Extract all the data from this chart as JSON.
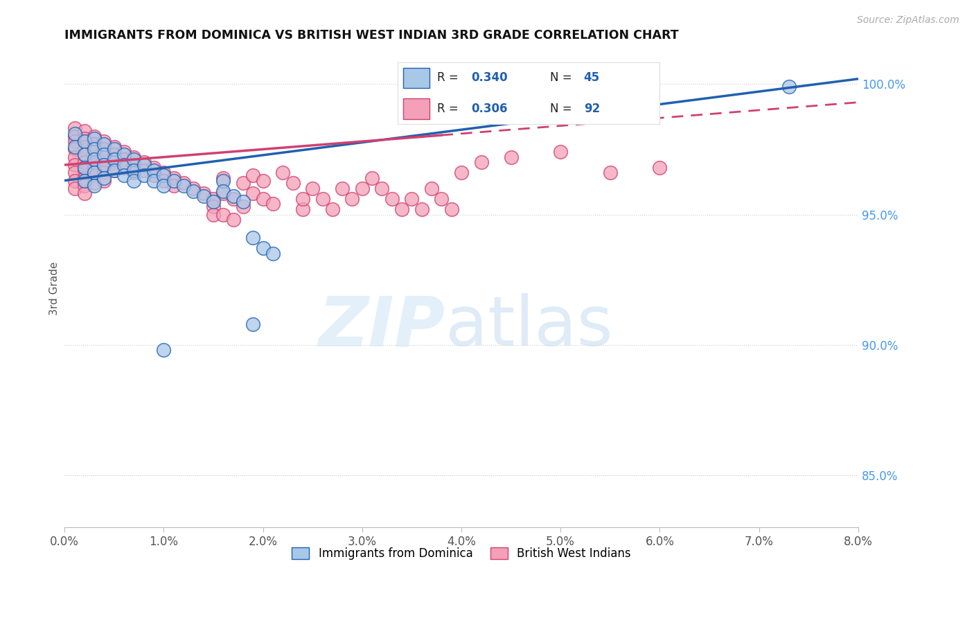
{
  "title": "IMMIGRANTS FROM DOMINICA VS BRITISH WEST INDIAN 3RD GRADE CORRELATION CHART",
  "source": "Source: ZipAtlas.com",
  "ylabel": "3rd Grade",
  "ylabel_right_ticks": [
    "85.0%",
    "90.0%",
    "95.0%",
    "100.0%"
  ],
  "ylabel_right_vals": [
    0.85,
    0.9,
    0.95,
    1.0
  ],
  "legend_blue_r": "0.340",
  "legend_blue_n": "45",
  "legend_pink_r": "0.306",
  "legend_pink_n": "92",
  "blue_color": "#a8c8e8",
  "pink_color": "#f4a0b8",
  "blue_line_color": "#2060b0",
  "pink_line_color": "#d04070",
  "blue_scatter": [
    [
      0.001,
      0.981
    ],
    [
      0.001,
      0.976
    ],
    [
      0.002,
      0.978
    ],
    [
      0.002,
      0.973
    ],
    [
      0.002,
      0.968
    ],
    [
      0.002,
      0.963
    ],
    [
      0.003,
      0.979
    ],
    [
      0.003,
      0.975
    ],
    [
      0.003,
      0.971
    ],
    [
      0.003,
      0.966
    ],
    [
      0.003,
      0.961
    ],
    [
      0.004,
      0.977
    ],
    [
      0.004,
      0.973
    ],
    [
      0.004,
      0.969
    ],
    [
      0.004,
      0.964
    ],
    [
      0.005,
      0.975
    ],
    [
      0.005,
      0.971
    ],
    [
      0.005,
      0.967
    ],
    [
      0.006,
      0.973
    ],
    [
      0.006,
      0.969
    ],
    [
      0.006,
      0.965
    ],
    [
      0.007,
      0.971
    ],
    [
      0.007,
      0.967
    ],
    [
      0.007,
      0.963
    ],
    [
      0.008,
      0.969
    ],
    [
      0.008,
      0.965
    ],
    [
      0.009,
      0.967
    ],
    [
      0.009,
      0.963
    ],
    [
      0.01,
      0.965
    ],
    [
      0.01,
      0.961
    ],
    [
      0.011,
      0.963
    ],
    [
      0.012,
      0.961
    ],
    [
      0.013,
      0.959
    ],
    [
      0.014,
      0.957
    ],
    [
      0.015,
      0.955
    ],
    [
      0.016,
      0.963
    ],
    [
      0.016,
      0.959
    ],
    [
      0.017,
      0.957
    ],
    [
      0.018,
      0.955
    ],
    [
      0.019,
      0.941
    ],
    [
      0.02,
      0.937
    ],
    [
      0.021,
      0.935
    ],
    [
      0.01,
      0.898
    ],
    [
      0.073,
      0.999
    ],
    [
      0.019,
      0.908
    ]
  ],
  "pink_scatter": [
    [
      0.001,
      0.983
    ],
    [
      0.001,
      0.98
    ],
    [
      0.001,
      0.978
    ],
    [
      0.001,
      0.975
    ],
    [
      0.001,
      0.972
    ],
    [
      0.001,
      0.969
    ],
    [
      0.001,
      0.966
    ],
    [
      0.001,
      0.963
    ],
    [
      0.001,
      0.96
    ],
    [
      0.002,
      0.982
    ],
    [
      0.002,
      0.979
    ],
    [
      0.002,
      0.976
    ],
    [
      0.002,
      0.973
    ],
    [
      0.002,
      0.97
    ],
    [
      0.002,
      0.967
    ],
    [
      0.002,
      0.964
    ],
    [
      0.002,
      0.961
    ],
    [
      0.002,
      0.958
    ],
    [
      0.003,
      0.98
    ],
    [
      0.003,
      0.977
    ],
    [
      0.003,
      0.974
    ],
    [
      0.003,
      0.971
    ],
    [
      0.003,
      0.968
    ],
    [
      0.003,
      0.965
    ],
    [
      0.003,
      0.962
    ],
    [
      0.004,
      0.978
    ],
    [
      0.004,
      0.975
    ],
    [
      0.004,
      0.972
    ],
    [
      0.004,
      0.969
    ],
    [
      0.004,
      0.966
    ],
    [
      0.004,
      0.963
    ],
    [
      0.005,
      0.976
    ],
    [
      0.005,
      0.973
    ],
    [
      0.005,
      0.97
    ],
    [
      0.005,
      0.967
    ],
    [
      0.006,
      0.974
    ],
    [
      0.006,
      0.971
    ],
    [
      0.006,
      0.968
    ],
    [
      0.007,
      0.972
    ],
    [
      0.007,
      0.969
    ],
    [
      0.007,
      0.966
    ],
    [
      0.008,
      0.97
    ],
    [
      0.008,
      0.967
    ],
    [
      0.009,
      0.968
    ],
    [
      0.009,
      0.965
    ],
    [
      0.01,
      0.966
    ],
    [
      0.01,
      0.963
    ],
    [
      0.011,
      0.964
    ],
    [
      0.011,
      0.961
    ],
    [
      0.012,
      0.962
    ],
    [
      0.013,
      0.96
    ],
    [
      0.014,
      0.958
    ],
    [
      0.015,
      0.956
    ],
    [
      0.015,
      0.953
    ],
    [
      0.016,
      0.964
    ],
    [
      0.016,
      0.958
    ],
    [
      0.017,
      0.956
    ],
    [
      0.018,
      0.962
    ],
    [
      0.019,
      0.958
    ],
    [
      0.02,
      0.956
    ],
    [
      0.021,
      0.954
    ],
    [
      0.022,
      0.966
    ],
    [
      0.023,
      0.962
    ],
    [
      0.024,
      0.952
    ],
    [
      0.024,
      0.956
    ],
    [
      0.025,
      0.96
    ],
    [
      0.026,
      0.956
    ],
    [
      0.027,
      0.952
    ],
    [
      0.028,
      0.96
    ],
    [
      0.029,
      0.956
    ],
    [
      0.03,
      0.96
    ],
    [
      0.031,
      0.964
    ],
    [
      0.032,
      0.96
    ],
    [
      0.033,
      0.956
    ],
    [
      0.034,
      0.952
    ],
    [
      0.035,
      0.956
    ],
    [
      0.036,
      0.952
    ],
    [
      0.037,
      0.96
    ],
    [
      0.038,
      0.956
    ],
    [
      0.039,
      0.952
    ],
    [
      0.04,
      0.966
    ],
    [
      0.042,
      0.97
    ],
    [
      0.045,
      0.972
    ],
    [
      0.05,
      0.974
    ],
    [
      0.055,
      0.966
    ],
    [
      0.06,
      0.968
    ],
    [
      0.015,
      0.95
    ],
    [
      0.016,
      0.95
    ],
    [
      0.017,
      0.948
    ],
    [
      0.018,
      0.953
    ],
    [
      0.019,
      0.965
    ],
    [
      0.02,
      0.963
    ]
  ],
  "xlim": [
    0.0,
    0.08
  ],
  "ylim": [
    0.83,
    1.013
  ],
  "blue_line_x": [
    0.0,
    0.08
  ],
  "blue_line_y": [
    0.963,
    1.002
  ],
  "pink_line_x": [
    0.0,
    0.08
  ],
  "pink_line_y": [
    0.969,
    0.993
  ],
  "pink_line_dash_start": 0.038,
  "xticks": [
    0.0,
    0.01,
    0.02,
    0.03,
    0.04,
    0.05,
    0.06,
    0.07,
    0.08
  ],
  "xtick_labels": [
    "0.0%",
    "1.0%",
    "2.0%",
    "3.0%",
    "4.0%",
    "5.0%",
    "6.0%",
    "7.0%",
    "8.0%"
  ]
}
